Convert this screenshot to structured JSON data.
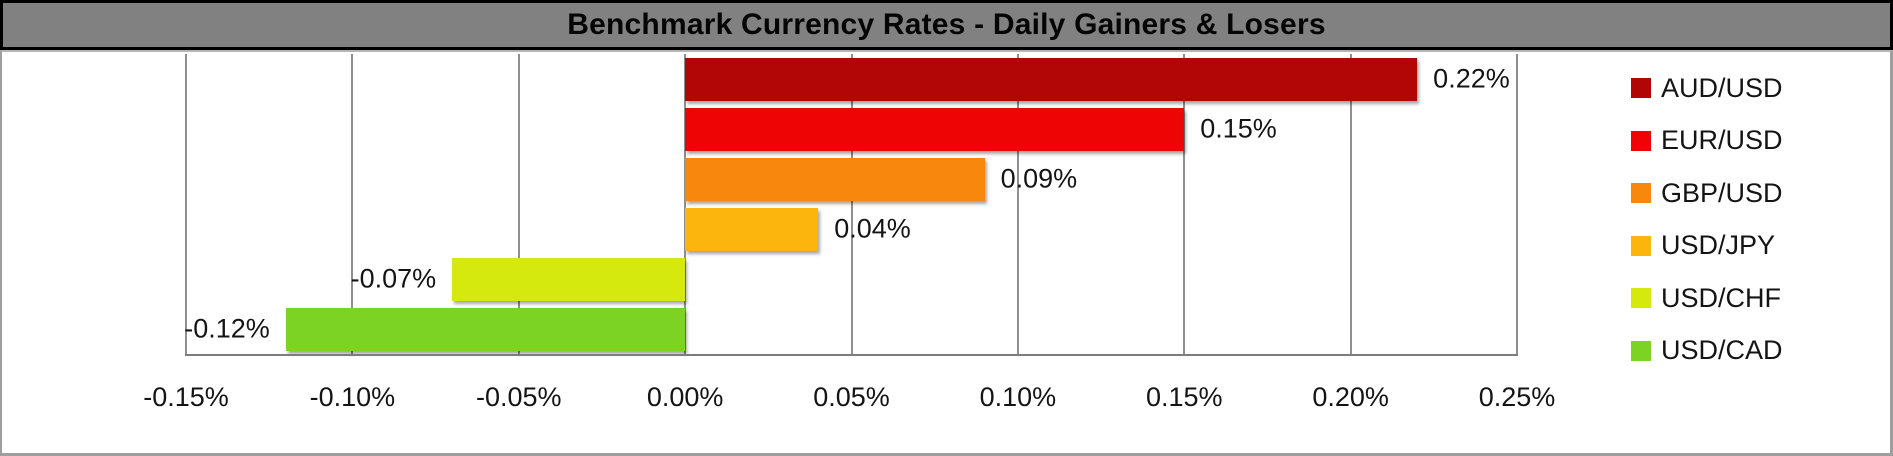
{
  "chart_data": {
    "type": "bar",
    "orientation": "horizontal",
    "title": "Benchmark Currency Rates - Daily Gainers & Losers",
    "categories": [
      "AUD/USD",
      "EUR/USD",
      "GBP/USD",
      "USD/JPY",
      "USD/CHF",
      "USD/CAD"
    ],
    "values": [
      0.22,
      0.15,
      0.09,
      0.04,
      -0.07,
      -0.12
    ],
    "value_labels": [
      "0.22%",
      "0.15%",
      "0.09%",
      "0.04%",
      "-0.07%",
      "-0.12%"
    ],
    "series_colors": [
      "#B20505",
      "#EE0404",
      "#F8870D",
      "#FBB50D",
      "#D6E90E",
      "#7CD324"
    ],
    "x_axis": {
      "min": -0.15,
      "max": 0.25,
      "step": 0.05,
      "tick_values": [
        -0.15,
        -0.1,
        -0.05,
        0.0,
        0.05,
        0.1,
        0.15,
        0.2,
        0.25
      ],
      "tick_labels": [
        "-0.15%",
        "-0.10%",
        "-0.05%",
        "0.00%",
        "0.05%",
        "0.10%",
        "0.15%",
        "0.20%",
        "0.25%"
      ]
    },
    "grid": true,
    "legend": {
      "position": "right",
      "entries": [
        {
          "label": "AUD/USD",
          "color": "#B20505"
        },
        {
          "label": "EUR/USD",
          "color": "#EE0404"
        },
        {
          "label": "GBP/USD",
          "color": "#F8870D"
        },
        {
          "label": "USD/JPY",
          "color": "#FBB50D"
        },
        {
          "label": "USD/CHF",
          "color": "#D6E90E"
        },
        {
          "label": "USD/CAD",
          "color": "#7CD324"
        }
      ]
    },
    "styling": {
      "title_bar_bg": "#818181",
      "title_bar_border": "#000000",
      "plot_bg": "#ffffff",
      "gridline_color": "#8f8f8f",
      "axis_color": "#7d7d7d",
      "label_color": "#141414"
    }
  }
}
